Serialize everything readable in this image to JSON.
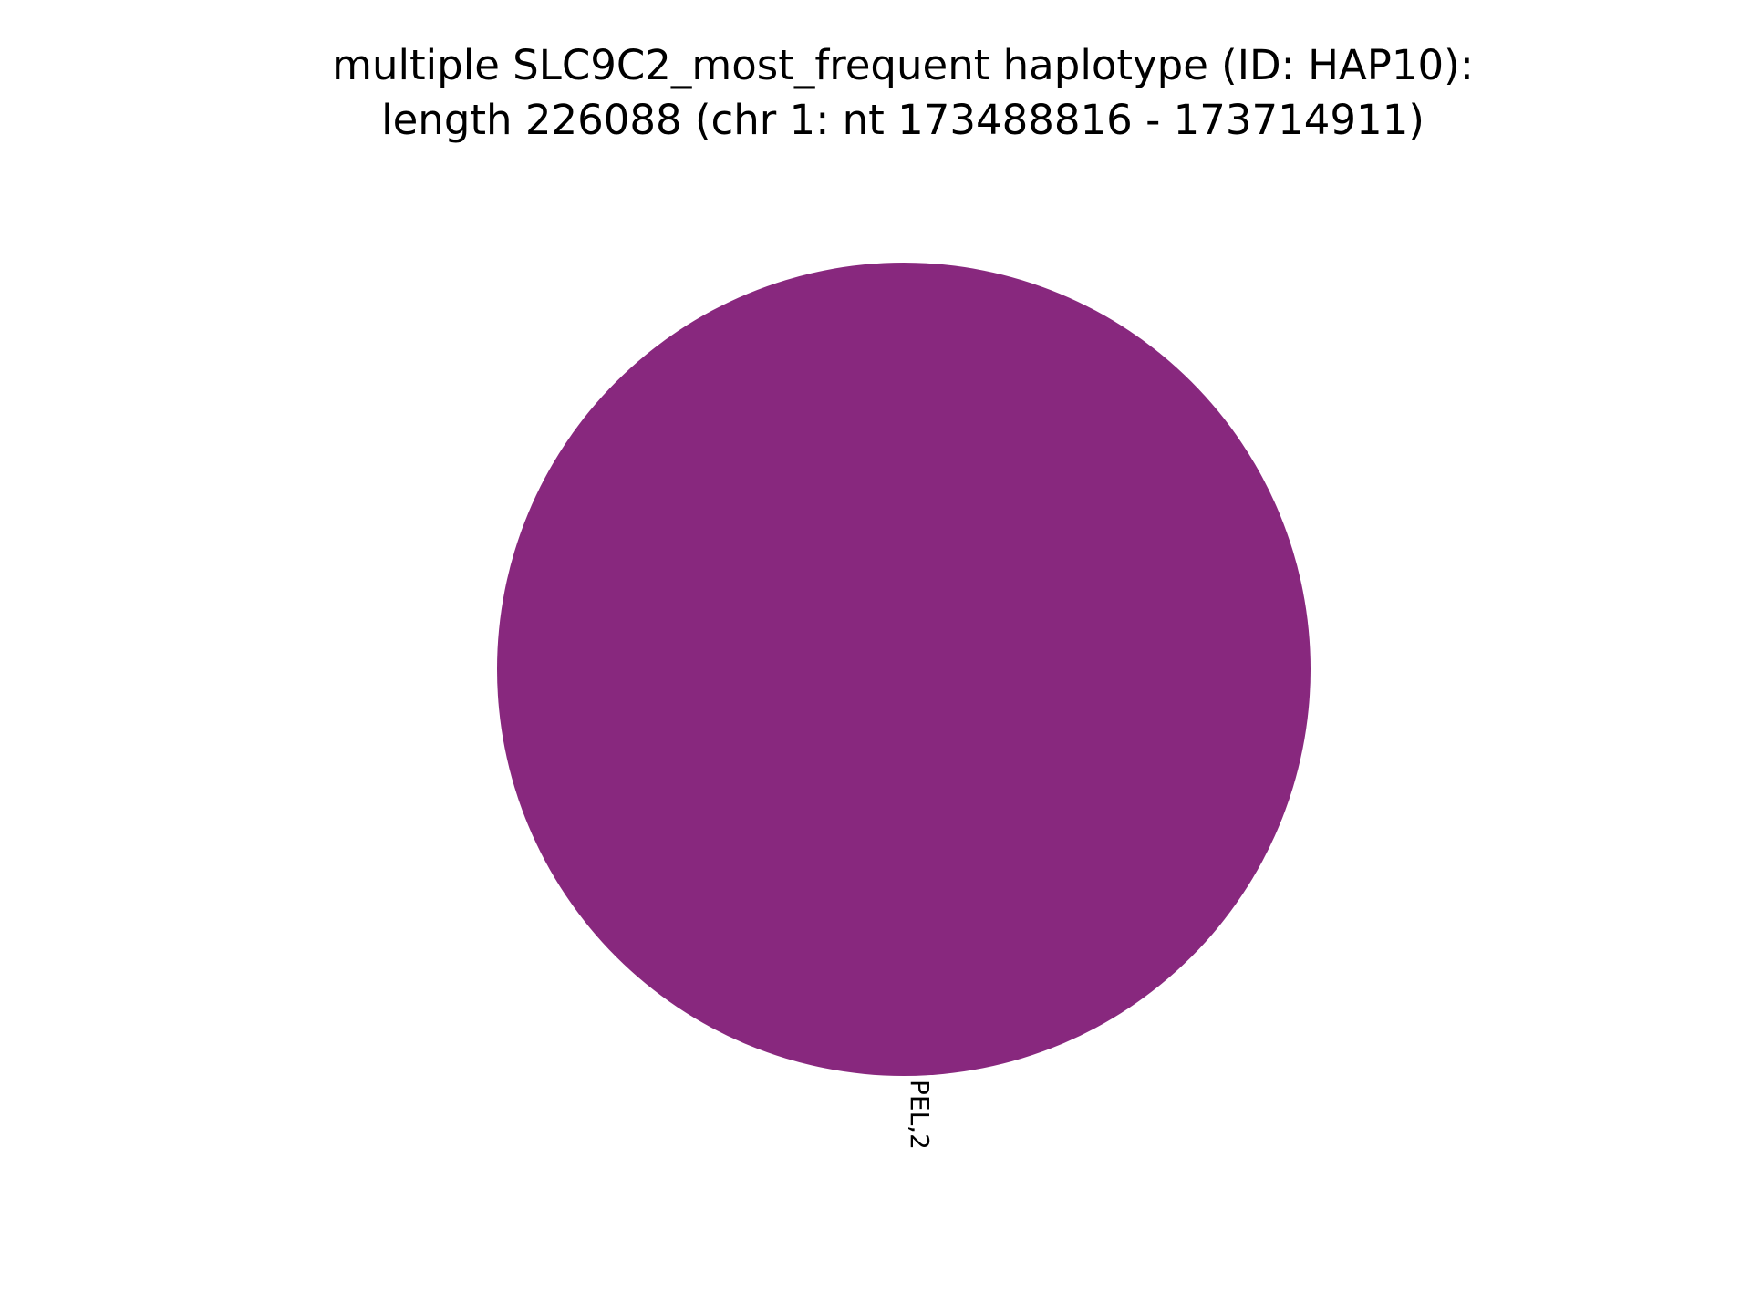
{
  "chart_data": {
    "type": "pie",
    "title_line1": "multiple SLC9C2_most_frequent haplotype (ID: HAP10):",
    "title_line2": "length 226088 (chr 1: nt 173488816 - 173714911)",
    "slices": [
      {
        "label": "PEL,2",
        "value": 2,
        "color": "#88287e"
      }
    ]
  }
}
